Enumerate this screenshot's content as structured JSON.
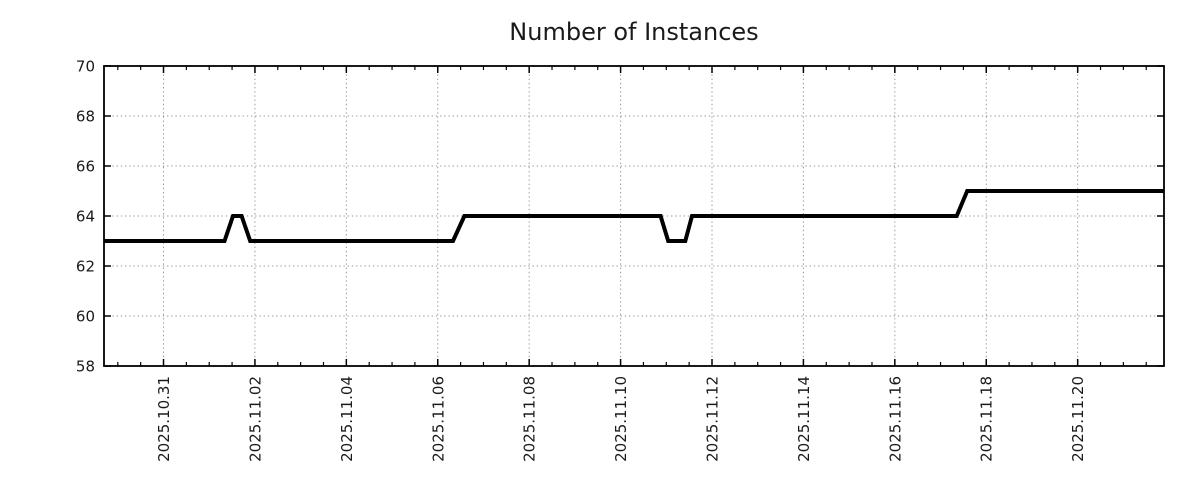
{
  "chart_data": {
    "type": "line",
    "title": "Number of Instances",
    "xlabel": "",
    "ylabel": "",
    "legend_position": "none",
    "grid": true,
    "background_color": "#ffffff",
    "colors": {
      "line": "#000000",
      "grid": "#999999",
      "axis": "#000000",
      "text": "#1a1a1a"
    },
    "ylim": [
      58,
      70
    ],
    "y_ticks": [
      58,
      60,
      62,
      64,
      66,
      68,
      70
    ],
    "x_domain": [
      "2025-10-29 16:45",
      "2025-11-21 21:20"
    ],
    "x_major_ticks": [
      {
        "date": "2025-10-31 00:00",
        "label": "2025.10.31"
      },
      {
        "date": "2025-11-02 00:00",
        "label": "2025.11.02"
      },
      {
        "date": "2025-11-04 00:00",
        "label": "2025.11.04"
      },
      {
        "date": "2025-11-06 00:00",
        "label": "2025.11.06"
      },
      {
        "date": "2025-11-08 00:00",
        "label": "2025.11.08"
      },
      {
        "date": "2025-11-10 00:00",
        "label": "2025.11.10"
      },
      {
        "date": "2025-11-12 00:00",
        "label": "2025.11.12"
      },
      {
        "date": "2025-11-14 00:00",
        "label": "2025.11.14"
      },
      {
        "date": "2025-11-16 00:00",
        "label": "2025.11.16"
      },
      {
        "date": "2025-11-18 00:00",
        "label": "2025.11.18"
      },
      {
        "date": "2025-11-20 00:00",
        "label": "2025.11.20"
      }
    ],
    "x_minor_interval_hours": 12,
    "series": [
      {
        "name": "Number of Instances",
        "color": "#000000",
        "line_width": 4,
        "points": [
          [
            "2025-10-29 16:45",
            63
          ],
          [
            "2025-11-01 08:00",
            63
          ],
          [
            "2025-11-01 12:30",
            64
          ],
          [
            "2025-11-01 17:00",
            64
          ],
          [
            "2025-11-01 21:30",
            63
          ],
          [
            "2025-11-06 08:00",
            63
          ],
          [
            "2025-11-06 14:00",
            64
          ],
          [
            "2025-11-10 21:00",
            64
          ],
          [
            "2025-11-11 01:00",
            63
          ],
          [
            "2025-11-11 10:00",
            63
          ],
          [
            "2025-11-11 13:30",
            64
          ],
          [
            "2025-11-17 08:30",
            64
          ],
          [
            "2025-11-17 14:00",
            65
          ],
          [
            "2025-11-21 21:20",
            65
          ]
        ]
      }
    ]
  }
}
